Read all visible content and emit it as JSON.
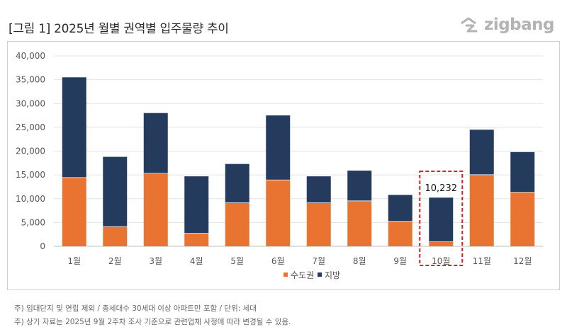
{
  "header": {
    "title": "[그림 1] 2025년 월별 권역별 입주물량 추이",
    "logo_text": "zigbang"
  },
  "chart_data": {
    "type": "bar",
    "stacked": true,
    "categories": [
      "1월",
      "2월",
      "3월",
      "4월",
      "5월",
      "6월",
      "7월",
      "8월",
      "9월",
      "10월",
      "11월",
      "12월"
    ],
    "series": [
      {
        "name": "수도권",
        "color": "#e97331",
        "values": [
          14500,
          4200,
          15400,
          2800,
          9200,
          14000,
          9200,
          9600,
          5300,
          1000,
          15100,
          11400
        ]
      },
      {
        "name": "지방",
        "color": "#243b5e",
        "values": [
          21000,
          14600,
          12600,
          11900,
          8100,
          13500,
          5500,
          6300,
          5500,
          9232,
          9400,
          8400
        ]
      }
    ],
    "ylim": [
      0,
      40000
    ],
    "yticks": [
      0,
      5000,
      10000,
      15000,
      20000,
      25000,
      30000,
      35000,
      40000
    ],
    "ytick_labels": [
      "0",
      "5,000",
      "10,000",
      "15,000",
      "20,000",
      "25,000",
      "30,000",
      "35,000",
      "40,000"
    ],
    "grid": true,
    "legend_position": "bottom",
    "annotation": {
      "category": "10월",
      "label": "10,232"
    }
  },
  "footnotes": [
    "주) 임대단지 및 연립 제외 / 총세대수 30세대 이상 아파트만 포함 / 단위: 세대",
    "주) 상기 자료는 2025년 9월 2주차 조사 기준으로 관련업체 사정에 따라 변경될 수 있음."
  ]
}
